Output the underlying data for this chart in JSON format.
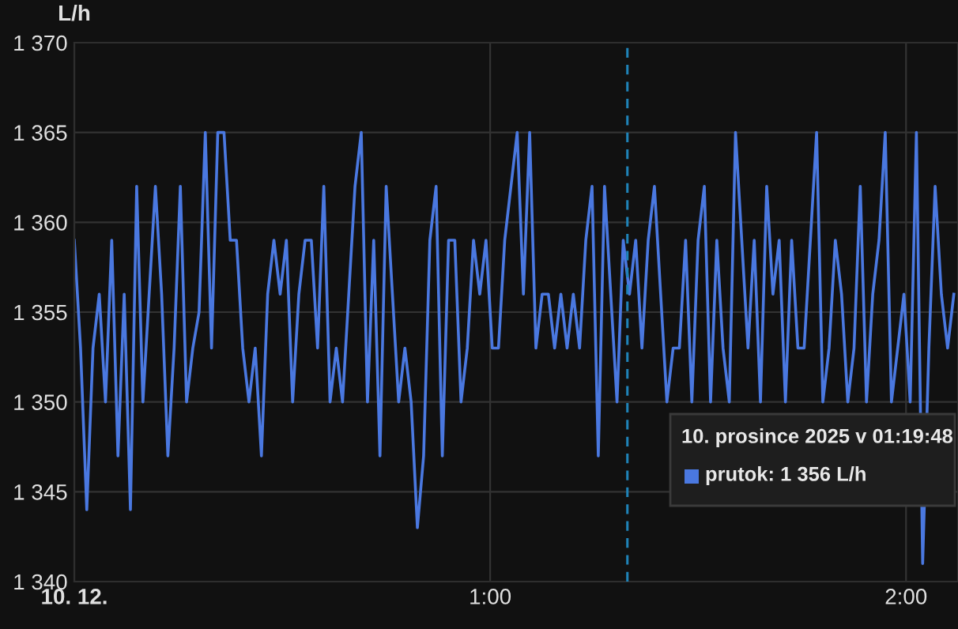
{
  "chart_data": {
    "type": "line",
    "ylabel": "L/h",
    "x": [
      0,
      0.015,
      0.03,
      0.045,
      0.06,
      0.075,
      0.09,
      0.105,
      0.12,
      0.135,
      0.15,
      0.165,
      0.18,
      0.195,
      0.21,
      0.225,
      0.24,
      0.255,
      0.27,
      0.285,
      0.3,
      0.315,
      0.33,
      0.345,
      0.36,
      0.375,
      0.39,
      0.405,
      0.42,
      0.435,
      0.45,
      0.465,
      0.48,
      0.495,
      0.51,
      0.525,
      0.54,
      0.555,
      0.57,
      0.585,
      0.6,
      0.615,
      0.63,
      0.645,
      0.66,
      0.675,
      0.69,
      0.705,
      0.72,
      0.735,
      0.75,
      0.765,
      0.78,
      0.795,
      0.81,
      0.825,
      0.84,
      0.855,
      0.87,
      0.885,
      0.9,
      0.915,
      0.93,
      0.945,
      0.96,
      0.975,
      0.99,
      1.005,
      1.02,
      1.035,
      1.05,
      1.065,
      1.08,
      1.095,
      1.11,
      1.125,
      1.14,
      1.155,
      1.17,
      1.185,
      1.2,
      1.215,
      1.23,
      1.245,
      1.26,
      1.275,
      1.29,
      1.305,
      1.32,
      1.335,
      1.35,
      1.365,
      1.38,
      1.395,
      1.41,
      1.425,
      1.44,
      1.455,
      1.47,
      1.485,
      1.5,
      1.515,
      1.53,
      1.545,
      1.56,
      1.575,
      1.59,
      1.605,
      1.62,
      1.635,
      1.65,
      1.665,
      1.68,
      1.695,
      1.71,
      1.725,
      1.74,
      1.755,
      1.77,
      1.785,
      1.8,
      1.815,
      1.83,
      1.845,
      1.86,
      1.875,
      1.89,
      1.905,
      1.92,
      1.935,
      1.95,
      1.965,
      1.98,
      1.995,
      2.01,
      2.025,
      2.04,
      2.055,
      2.07,
      2.085,
      2.1,
      2.115
    ],
    "series": [
      {
        "color": "#4a78e0",
        "values": [
          1359,
          1353,
          1344,
          1353,
          1356,
          1350,
          1359,
          1347,
          1356,
          1344,
          1362,
          1350,
          1356,
          1362,
          1356,
          1347,
          1353,
          1362,
          1350,
          1353,
          1355,
          1365,
          1353,
          1365,
          1365,
          1359,
          1359,
          1353,
          1350,
          1353,
          1347,
          1356,
          1359,
          1356,
          1359,
          1350,
          1356,
          1359,
          1359,
          1353,
          1362,
          1350,
          1353,
          1350,
          1356,
          1362,
          1365,
          1350,
          1359,
          1347,
          1362,
          1356,
          1350,
          1353,
          1350,
          1343,
          1347,
          1359,
          1362,
          1347,
          1359,
          1359,
          1350,
          1353,
          1359,
          1356,
          1359,
          1353,
          1353,
          1359,
          1362,
          1365,
          1356,
          1365,
          1353,
          1356,
          1356,
          1353,
          1356,
          1353,
          1356,
          1353,
          1359,
          1362,
          1347,
          1362,
          1356,
          1350,
          1359,
          1356,
          1359,
          1353,
          1359,
          1362,
          1356,
          1350,
          1353,
          1353,
          1359,
          1350,
          1359,
          1362,
          1350,
          1359,
          1353,
          1350,
          1365,
          1359,
          1353,
          1359,
          1350,
          1362,
          1356,
          1359,
          1350,
          1359,
          1353,
          1353,
          1359,
          1365,
          1350,
          1353,
          1359,
          1356,
          1350,
          1353,
          1362,
          1350,
          1356,
          1359,
          1365,
          1350,
          1353,
          1356,
          1350,
          1365,
          1341,
          1353,
          1362,
          1356,
          1353,
          1356
        ]
      }
    ],
    "xlim": [
      0,
      2.125
    ],
    "xticks": [
      {
        "value": 0,
        "label": "10. 12."
      },
      {
        "value": 1,
        "label": "1:00"
      },
      {
        "value": 2,
        "label": "2:00"
      }
    ],
    "ylim": [
      1340,
      1370
    ],
    "yticks": [
      {
        "value": 1340,
        "label": "1 340"
      },
      {
        "value": 1345,
        "label": "1 345"
      },
      {
        "value": 1350,
        "label": "1 350"
      },
      {
        "value": 1355,
        "label": "1 355"
      },
      {
        "value": 1360,
        "label": "1 360"
      },
      {
        "value": 1365,
        "label": "1 365"
      },
      {
        "value": 1370,
        "label": "1 370"
      }
    ],
    "grid": true,
    "ref_lines": [
      {
        "axis": "x",
        "value": 1.33,
        "color": "#1f83b8",
        "line_style": "dashed"
      }
    ],
    "annotations": [
      "10. prosince 2025 v 01:19:48",
      "prutok: 1 356 L/h"
    ]
  }
}
